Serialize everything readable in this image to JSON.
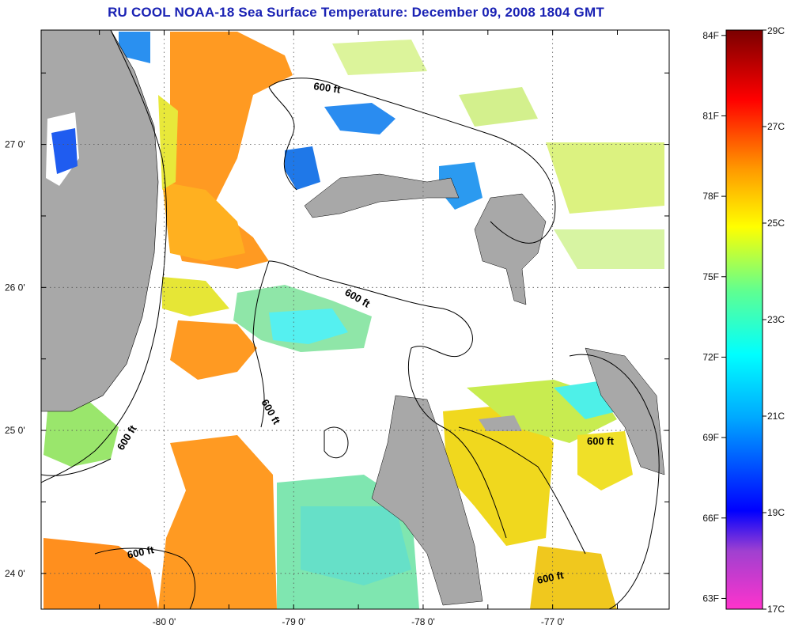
{
  "title": "RU COOL  NOAA-18  Sea Surface Temperature:  December 09, 2008 1804 GMT",
  "map": {
    "lon_range": [
      -80.95,
      -76.1
    ],
    "lat_range": [
      23.75,
      27.8
    ],
    "lon_ticks": [
      {
        "value": -80,
        "label": "-80 0'"
      },
      {
        "value": -79,
        "label": "-79 0'"
      },
      {
        "value": -78,
        "label": "-78 0'"
      },
      {
        "value": -77,
        "label": "-77 0'"
      }
    ],
    "lat_ticks": [
      {
        "value": 27,
        "label": "27 0'"
      },
      {
        "value": 26,
        "label": "26 0'"
      },
      {
        "value": 25,
        "label": "25 0'"
      },
      {
        "value": 24,
        "label": "24 0'"
      }
    ],
    "grid": "dotted",
    "land_color": "#a8a8a8",
    "cloud_color": "#ffffff",
    "contour_labels": [
      "600 ft",
      "600 ft",
      "600 ft",
      "600 ft",
      "600 ft",
      "600 ft"
    ]
  },
  "colorbar": {
    "fahrenheit": [
      "84F",
      "81F",
      "78F",
      "75F",
      "72F",
      "69F",
      "66F",
      "63F"
    ],
    "celsius": [
      "29C",
      "27C",
      "25C",
      "23C",
      "21C",
      "19C",
      "17C"
    ],
    "range_celsius": [
      17,
      29
    ]
  }
}
